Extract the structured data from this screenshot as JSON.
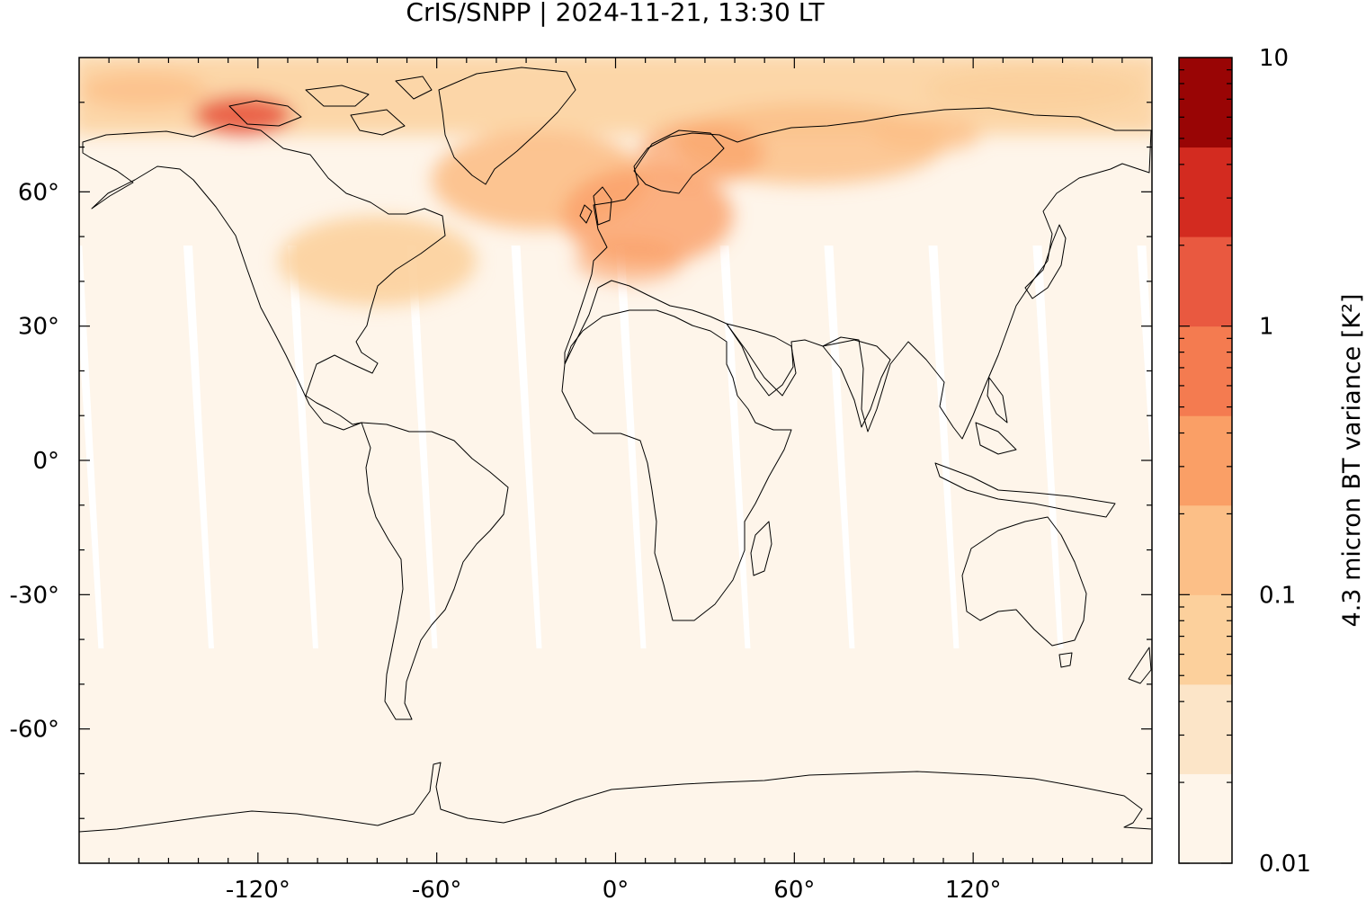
{
  "title": "CrIS/SNPP | 2024-11-21, 13:30 LT",
  "map": {
    "projection": "equirectangular",
    "lon_range": [
      -180,
      180
    ],
    "lat_range": [
      -90,
      90
    ],
    "x_ticks": [
      -120,
      -60,
      0,
      60,
      120
    ],
    "x_tick_labels": [
      "-120°",
      "-60°",
      "0°",
      "60°",
      "120°"
    ],
    "y_ticks": [
      60,
      30,
      0,
      -30,
      -60
    ],
    "y_tick_labels": [
      "60°",
      "30°",
      "0°",
      "-30°",
      "-60°"
    ],
    "background_color": "#fef5ea",
    "gap_color": "#ffffff",
    "coastline_color": "#000000"
  },
  "colorbar": {
    "label": "4.3 micron BT variance [K²]",
    "scale": "log",
    "range": [
      0.01,
      10
    ],
    "tick_labels": [
      "10",
      "1",
      "0.1",
      "0.01"
    ],
    "tick_values": [
      10,
      1,
      0.1,
      0.01
    ],
    "colors": [
      "#fef5ea",
      "#fce5c8",
      "#fcd09c",
      "#fcbf87",
      "#fa9f66",
      "#f47b50",
      "#e95940",
      "#d32b20",
      "#990505"
    ]
  }
}
